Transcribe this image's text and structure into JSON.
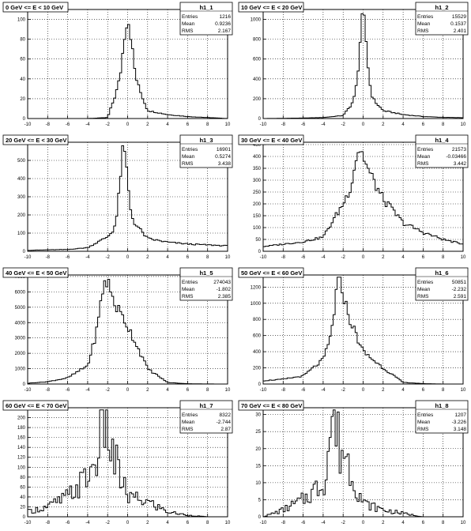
{
  "chart_data": [
    {
      "type": "histogram",
      "title": "0 GeV <= E < 10 GeV",
      "stats": {
        "name": "h1_1",
        "entries": "1216",
        "mean": "0.9236",
        "rms": "2.167"
      },
      "xlim": [
        -10,
        10
      ],
      "ylim": [
        0,
        110
      ],
      "yticks": [
        0,
        20,
        40,
        60,
        80,
        100
      ],
      "xticks": [
        -10,
        -8,
        -6,
        -4,
        -2,
        0,
        2,
        4,
        6,
        8,
        10
      ],
      "grid": true,
      "bin_width": 0.2,
      "peak": {
        "x": 0.0,
        "y": 100
      },
      "y_at_xticks": [
        0,
        0,
        0,
        0,
        1,
        60,
        8,
        4,
        2,
        1,
        0
      ]
    },
    {
      "type": "histogram",
      "title": "10 GeV <= E < 20 GeV",
      "stats": {
        "name": "h1_2",
        "entries": "15529",
        "mean": "0.1537",
        "rms": "2.401"
      },
      "xlim": [
        -10,
        10
      ],
      "ylim": [
        0,
        1100
      ],
      "yticks": [
        0,
        200,
        400,
        600,
        800,
        1000
      ],
      "xticks": [
        -10,
        -8,
        -6,
        -4,
        -2,
        0,
        2,
        4,
        6,
        8,
        10
      ],
      "grid": true,
      "bin_width": 0.2,
      "peak": {
        "x": 0.0,
        "y": 1000
      },
      "y_at_xticks": [
        0,
        2,
        5,
        10,
        30,
        300,
        80,
        40,
        20,
        12,
        8
      ]
    },
    {
      "type": "histogram",
      "title": "20 GeV <= E < 30 GeV",
      "stats": {
        "name": "h1_3",
        "entries": "16901",
        "mean": "0.5274",
        "rms": "3.438"
      },
      "xlim": [
        -10,
        10
      ],
      "ylim": [
        0,
        600
      ],
      "yticks": [
        0,
        100,
        200,
        300,
        400,
        500
      ],
      "xticks": [
        -10,
        -8,
        -6,
        -4,
        -2,
        0,
        2,
        4,
        6,
        8,
        10
      ],
      "grid": true,
      "bin_width": 0.2,
      "peak": {
        "x": -0.4,
        "y": 550
      },
      "y_at_xticks": [
        5,
        8,
        10,
        20,
        80,
        200,
        70,
        50,
        40,
        35,
        30
      ]
    },
    {
      "type": "histogram",
      "title": "30 GeV <= E < 40 GeV",
      "stats": {
        "name": "h1_4",
        "entries": "21573",
        "mean": "-0.03466",
        "rms": "3.442"
      },
      "xlim": [
        -10,
        10
      ],
      "ylim": [
        0,
        460
      ],
      "yticks": [
        0,
        50,
        100,
        150,
        200,
        250,
        300,
        350,
        400,
        450
      ],
      "xticks": [
        -10,
        -8,
        -6,
        -4,
        -2,
        0,
        2,
        4,
        6,
        8,
        10
      ],
      "grid": true,
      "bin_width": 0.2,
      "peak": {
        "x": -0.4,
        "y": 430
      },
      "y_at_xticks": [
        20,
        30,
        40,
        60,
        200,
        380,
        220,
        120,
        80,
        50,
        30
      ]
    },
    {
      "type": "histogram",
      "title": "40 GeV <= E < 50 GeV",
      "stats": {
        "name": "h1_5",
        "entries": "274043",
        "mean": "-1.802",
        "rms": "2.385"
      },
      "xlim": [
        -10,
        10
      ],
      "ylim": [
        0,
        7100
      ],
      "yticks": [
        0,
        1000,
        2000,
        3000,
        4000,
        5000,
        6000,
        7000
      ],
      "xticks": [
        -10,
        -8,
        -6,
        -4,
        -2,
        0,
        2,
        4,
        6,
        8,
        10
      ],
      "grid": true,
      "bin_width": 0.2,
      "peak": {
        "x": -2.2,
        "y": 6700
      },
      "y_at_xticks": [
        50,
        150,
        400,
        1200,
        6000,
        3800,
        1000,
        100,
        20,
        5,
        0
      ]
    },
    {
      "type": "histogram",
      "title": "50 GeV <= E < 60 GeV",
      "stats": {
        "name": "h1_6",
        "entries": "50851",
        "mean": "-2.232",
        "rms": "2.591"
      },
      "xlim": [
        -10,
        10
      ],
      "ylim": [
        0,
        1350
      ],
      "yticks": [
        0,
        200,
        400,
        600,
        800,
        1000,
        1200
      ],
      "xticks": [
        -10,
        -8,
        -6,
        -4,
        -2,
        0,
        2,
        4,
        6,
        8,
        10
      ],
      "grid": true,
      "bin_width": 0.2,
      "peak": {
        "x": -2.4,
        "y": 1270
      },
      "y_at_xticks": [
        40,
        60,
        100,
        300,
        1000,
        400,
        200,
        20,
        5,
        0,
        0
      ]
    },
    {
      "type": "histogram",
      "title": "60 GeV <= E < 70 GeV",
      "stats": {
        "name": "h1_7",
        "entries": "8322",
        "mean": "-2.744",
        "rms": "2.87"
      },
      "xlim": [
        -10,
        10
      ],
      "ylim": [
        0,
        220
      ],
      "yticks": [
        0,
        20,
        40,
        60,
        80,
        100,
        120,
        140,
        160,
        180,
        200,
        220
      ],
      "xticks": [
        -10,
        -8,
        -6,
        -4,
        -2,
        0,
        2,
        4,
        6,
        8,
        10
      ],
      "grid": true,
      "bin_width": 0.2,
      "peak": {
        "x": -2.4,
        "y": 208
      },
      "y_at_xticks": [
        10,
        20,
        40,
        80,
        150,
        40,
        30,
        10,
        3,
        0,
        0
      ]
    },
    {
      "type": "histogram",
      "title": "70 GeV <= E < 80 GeV",
      "stats": {
        "name": "h1_8",
        "entries": "1207",
        "mean": "-3.226",
        "rms": "3.148"
      },
      "xlim": [
        -10,
        10
      ],
      "ylim": [
        0,
        32
      ],
      "yticks": [
        0,
        5,
        10,
        15,
        20,
        25,
        30
      ],
      "xticks": [
        -10,
        -8,
        -6,
        -4,
        -2,
        0,
        2,
        4,
        6,
        8,
        10
      ],
      "grid": true,
      "bin_width": 0.2,
      "peak": {
        "x": -3.0,
        "y": 30
      },
      "y_at_xticks": [
        0,
        2,
        5,
        10,
        20,
        4,
        2,
        1,
        0,
        0,
        0
      ]
    }
  ]
}
